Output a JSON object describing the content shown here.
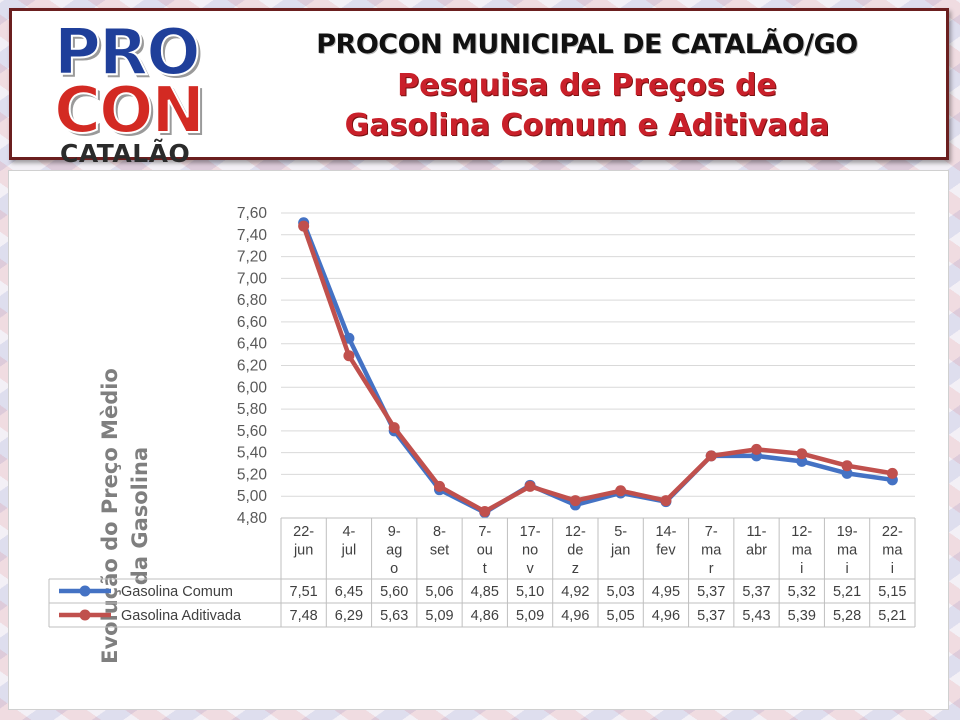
{
  "header": {
    "logo_top": "PRO",
    "logo_bottom": "CON",
    "logo_city": "CATALÃO",
    "title_line1": "PROCON MUNICIPAL DE CATALÃO/GO",
    "title_line2": "Pesquisa de Preços de",
    "title_line3": "Gasolina Comum e Aditivada"
  },
  "chart_data": {
    "type": "line",
    "ylabel_line1": "Evolução do Preço Mèdio",
    "ylabel_line2": "da Gasolina",
    "ylim": [
      4.8,
      7.6
    ],
    "yticks": [
      "7,60",
      "7,40",
      "7,20",
      "7,00",
      "6,80",
      "6,60",
      "6,40",
      "6,20",
      "6,00",
      "5,80",
      "5,60",
      "5,40",
      "5,20",
      "5,00",
      "4,80"
    ],
    "grid": true,
    "categories": [
      [
        "22-",
        "jun"
      ],
      [
        "4-",
        "jul"
      ],
      [
        "9-",
        "ag",
        "o"
      ],
      [
        "8-",
        "set"
      ],
      [
        "7-",
        "ou",
        "t"
      ],
      [
        "17-",
        "no",
        "v"
      ],
      [
        "12-",
        "de",
        "z"
      ],
      [
        "5-",
        "jan"
      ],
      [
        "14-",
        "fev"
      ],
      [
        "7-",
        "ma",
        "r"
      ],
      [
        "11-",
        "abr"
      ],
      [
        "12-",
        "ma",
        "i"
      ],
      [
        "19-",
        "ma",
        "i"
      ],
      [
        "22-",
        "ma",
        "i"
      ]
    ],
    "series": [
      {
        "name": "Gasolina Comum",
        "color": "#4472c4",
        "values": [
          7.51,
          6.45,
          5.6,
          5.06,
          4.85,
          5.1,
          4.92,
          5.03,
          4.95,
          5.37,
          5.37,
          5.32,
          5.21,
          5.15
        ],
        "labels": [
          "7,51",
          "6,45",
          "5,60",
          "5,06",
          "4,85",
          "5,10",
          "4,92",
          "5,03",
          "4,95",
          "5,37",
          "5,37",
          "5,32",
          "5,21",
          "5,15"
        ]
      },
      {
        "name": "Gasolina Aditivada",
        "color": "#c0504d",
        "values": [
          7.48,
          6.29,
          5.63,
          5.09,
          4.86,
          5.09,
          4.96,
          5.05,
          4.96,
          5.37,
          5.43,
          5.39,
          5.28,
          5.21
        ],
        "labels": [
          "7,48",
          "6,29",
          "5,63",
          "5,09",
          "4,86",
          "5,09",
          "4,96",
          "5,05",
          "4,96",
          "5,37",
          "5,43",
          "5,39",
          "5,28",
          "5,21"
        ]
      }
    ]
  }
}
